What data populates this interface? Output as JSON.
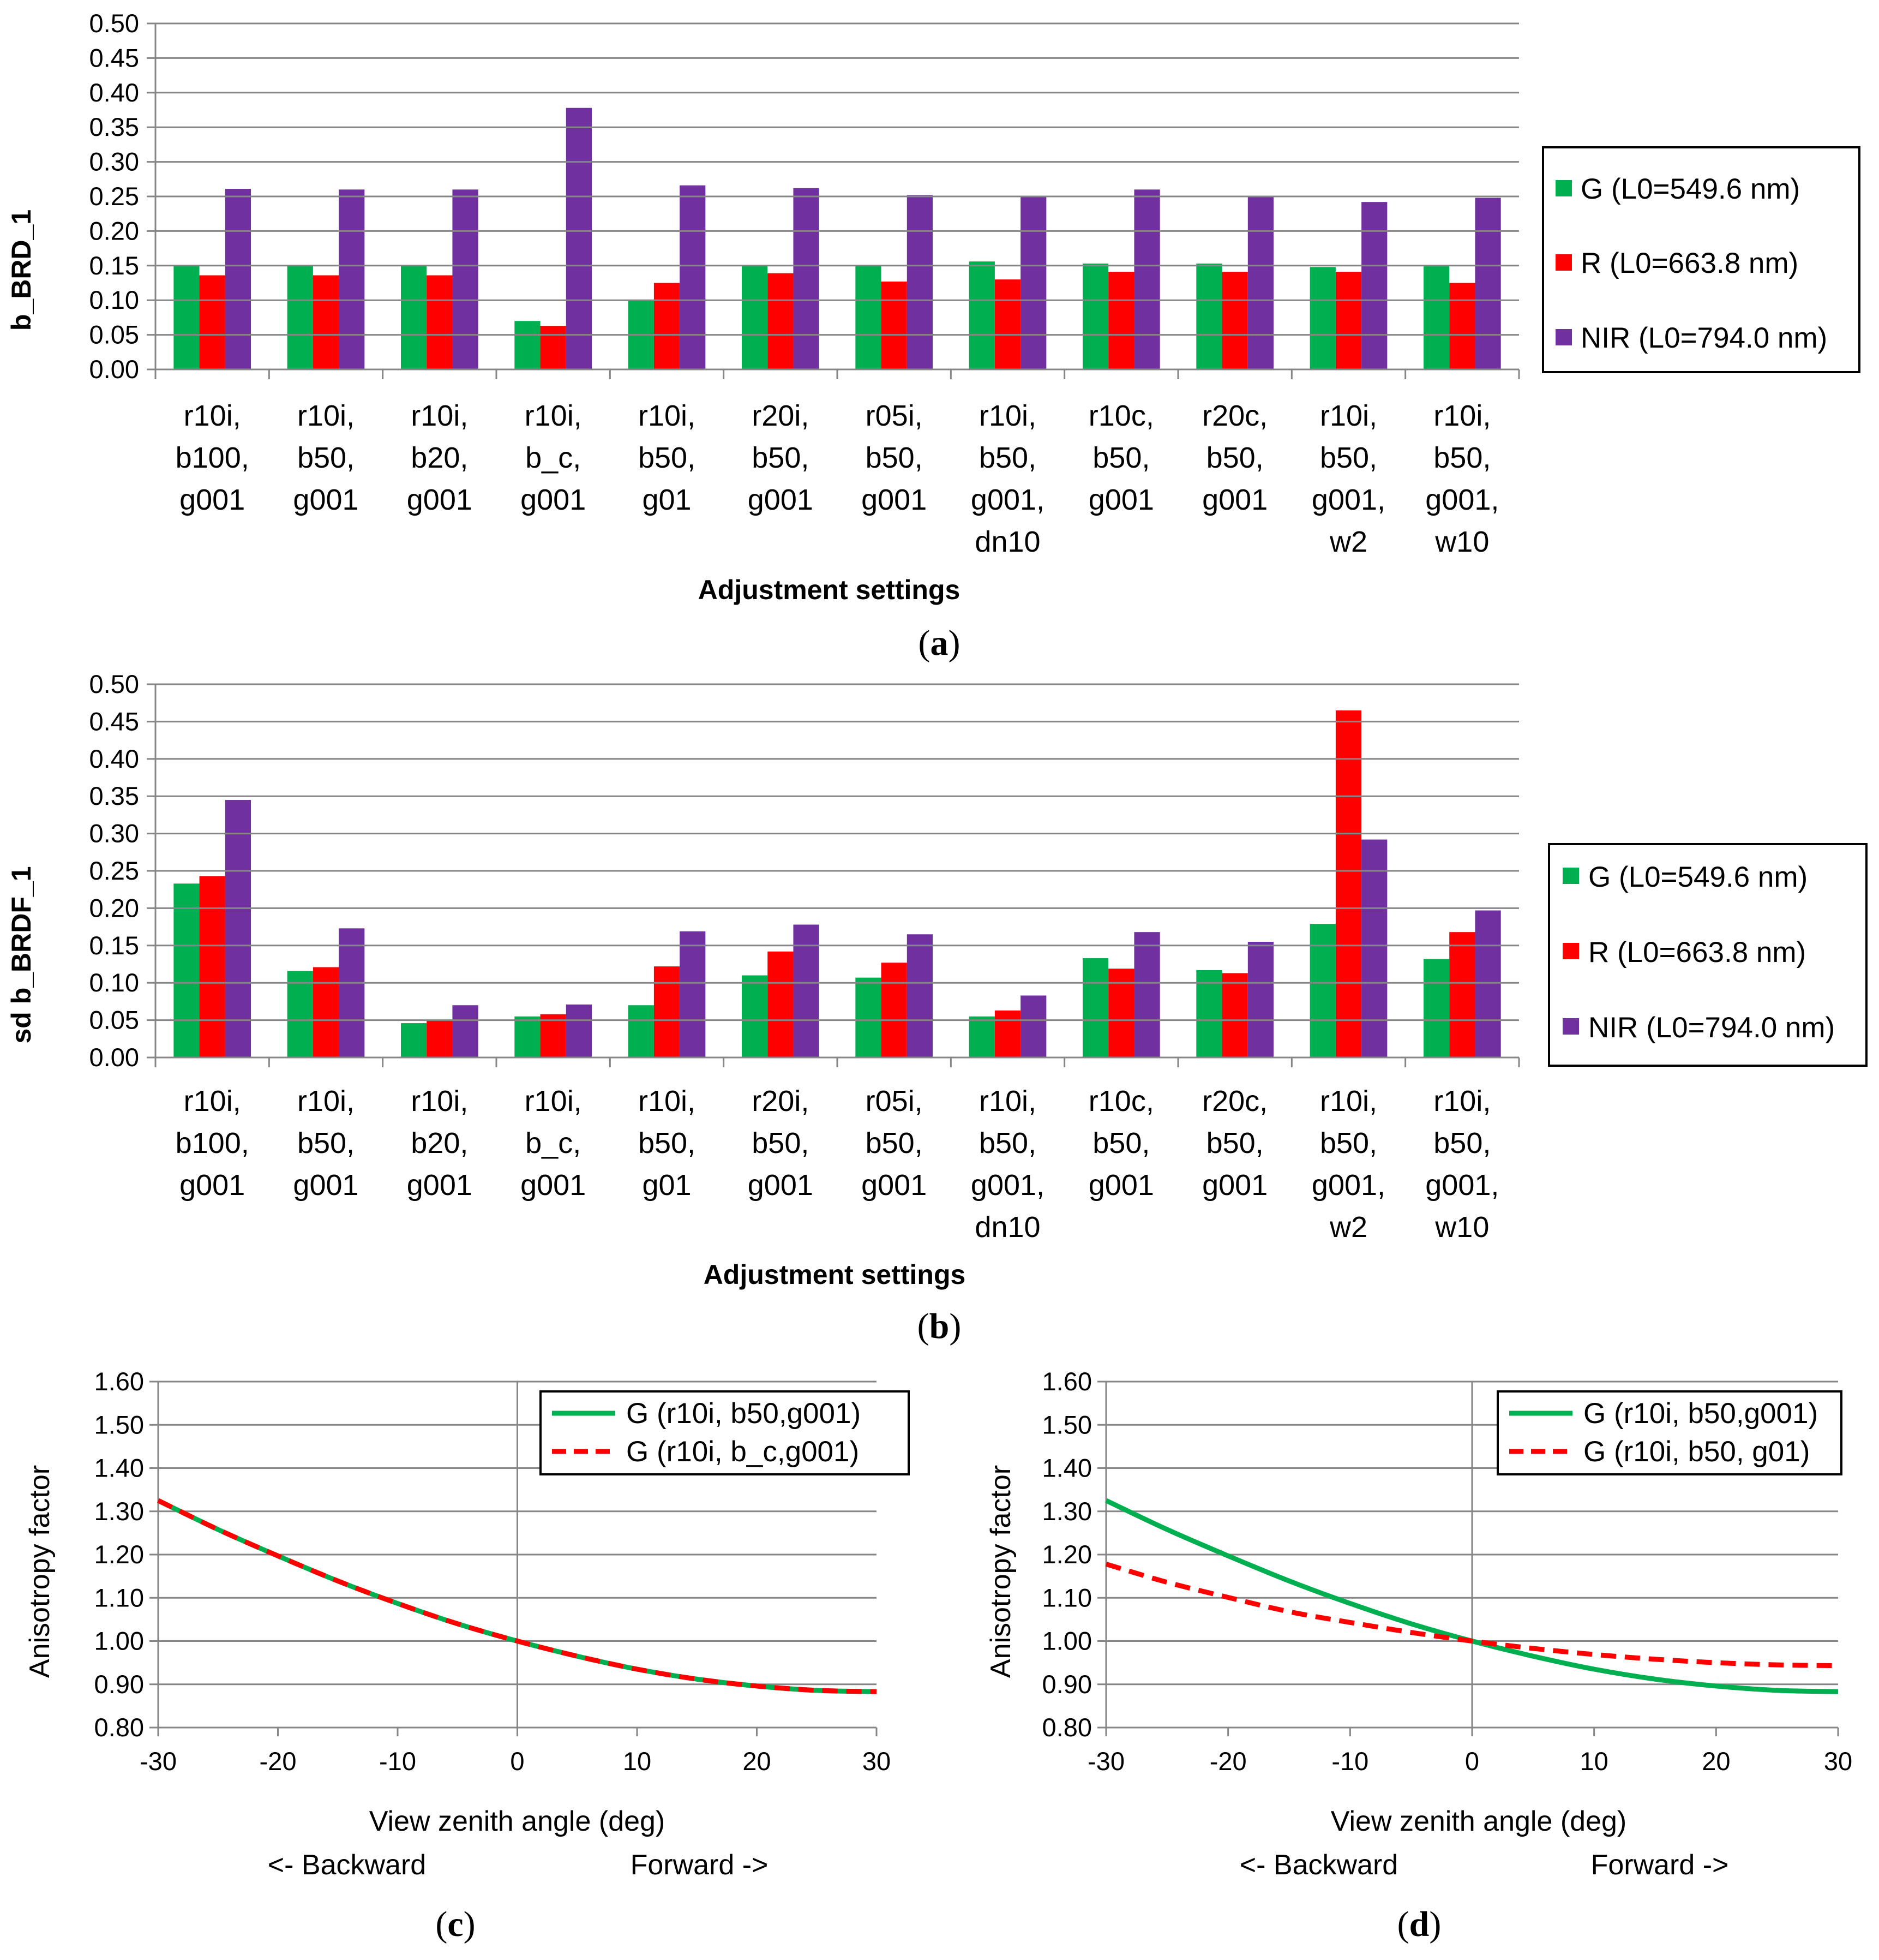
{
  "colors": {
    "G": "#00b050",
    "R": "#ff0000",
    "NIR": "#7030a0",
    "grid": "#868686",
    "axis": "#868686"
  },
  "chart_data": [
    {
      "type": "bar",
      "id": "a",
      "panel_label": "a",
      "ylabel": "b_BRD_1",
      "xlabel": "Adjustment settings",
      "ylim": [
        0,
        0.5
      ],
      "yticks": [
        "0.00",
        "0.05",
        "0.10",
        "0.15",
        "0.20",
        "0.25",
        "0.30",
        "0.35",
        "0.40",
        "0.45",
        "0.50"
      ],
      "categories": [
        [
          "r10i,",
          "b100,",
          "g001"
        ],
        [
          "r10i,",
          "b50,",
          "g001"
        ],
        [
          "r10i,",
          "b20,",
          "g001"
        ],
        [
          "r10i,",
          "b_c,",
          "g001"
        ],
        [
          "r10i,",
          "b50,",
          "g01"
        ],
        [
          "r20i,",
          "b50,",
          "g001"
        ],
        [
          "r05i,",
          "b50,",
          "g001"
        ],
        [
          "r10i,",
          "b50,",
          "g001,",
          "dn10"
        ],
        [
          "r10c,",
          "b50,",
          "g001"
        ],
        [
          "r20c,",
          "b50,",
          "g001"
        ],
        [
          "r10i,",
          "b50,",
          "g001,",
          "w2"
        ],
        [
          "r10i,",
          "b50,",
          "g001,",
          "w10"
        ]
      ],
      "series": [
        {
          "name": "G (L0=549.6 nm)",
          "key": "G",
          "values": [
            0.151,
            0.151,
            0.151,
            0.07,
            0.1,
            0.151,
            0.15,
            0.156,
            0.153,
            0.153,
            0.148,
            0.149
          ]
        },
        {
          "name": "R (L0=663.8 nm)",
          "key": "R",
          "values": [
            0.136,
            0.136,
            0.136,
            0.063,
            0.125,
            0.139,
            0.127,
            0.13,
            0.141,
            0.141,
            0.141,
            0.125
          ]
        },
        {
          "name": "NIR (L0=794.0 nm)",
          "key": "NIR",
          "values": [
            0.261,
            0.26,
            0.26,
            0.378,
            0.266,
            0.262,
            0.252,
            0.251,
            0.26,
            0.251,
            0.242,
            0.248
          ]
        }
      ]
    },
    {
      "type": "bar",
      "id": "b",
      "panel_label": "b",
      "ylabel": "sd b_BRDF_1",
      "xlabel": "Adjustment settings",
      "ylim": [
        0,
        0.5
      ],
      "yticks": [
        "0.00",
        "0.05",
        "0.10",
        "0.15",
        "0.20",
        "0.25",
        "0.30",
        "0.35",
        "0.40",
        "0.45",
        "0.50"
      ],
      "categories": [
        [
          "r10i,",
          "b100,",
          "g001"
        ],
        [
          "r10i,",
          "b50,",
          "g001"
        ],
        [
          "r10i,",
          "b20,",
          "g001"
        ],
        [
          "r10i,",
          "b_c,",
          "g001"
        ],
        [
          "r10i,",
          "b50,",
          "g01"
        ],
        [
          "r20i,",
          "b50,",
          "g001"
        ],
        [
          "r05i,",
          "b50,",
          "g001"
        ],
        [
          "r10i,",
          "b50,",
          "g001,",
          "dn10"
        ],
        [
          "r10c,",
          "b50,",
          "g001"
        ],
        [
          "r20c,",
          "b50,",
          "g001"
        ],
        [
          "r10i,",
          "b50,",
          "g001,",
          "w2"
        ],
        [
          "r10i,",
          "b50,",
          "g001,",
          "w10"
        ]
      ],
      "series": [
        {
          "name": "G (L0=549.6 nm)",
          "key": "G",
          "values": [
            0.233,
            0.116,
            0.046,
            0.055,
            0.07,
            0.11,
            0.107,
            0.055,
            0.133,
            0.117,
            0.179,
            0.132
          ]
        },
        {
          "name": "R (L0=663.8 nm)",
          "key": "R",
          "values": [
            0.243,
            0.121,
            0.05,
            0.058,
            0.122,
            0.142,
            0.127,
            0.063,
            0.119,
            0.113,
            0.465,
            0.168
          ]
        },
        {
          "name": "NIR (L0=794.0 nm)",
          "key": "NIR",
          "values": [
            0.345,
            0.173,
            0.07,
            0.071,
            0.169,
            0.178,
            0.165,
            0.083,
            0.168,
            0.155,
            0.292,
            0.197
          ]
        }
      ]
    },
    {
      "type": "line",
      "id": "c",
      "panel_label": "c",
      "ylabel": "Anisotropy factor",
      "xlabel": "View zenith angle (deg)",
      "sublabels": [
        "<- Backward",
        "Forward ->"
      ],
      "xlim": [
        -30,
        30
      ],
      "ylim": [
        0.8,
        1.6
      ],
      "xticks": [
        "-30",
        "-20",
        "-10",
        "0",
        "10",
        "20",
        "30"
      ],
      "yticks": [
        "0.80",
        "0.90",
        "1.00",
        "1.10",
        "1.20",
        "1.30",
        "1.40",
        "1.50",
        "1.60"
      ],
      "x": [
        -30,
        -25,
        -20,
        -15,
        -10,
        -5,
        0,
        5,
        10,
        15,
        20,
        25,
        30
      ],
      "series": [
        {
          "name": "G (r10i, b50,g001)",
          "style": "solid",
          "color": "#00b050",
          "values": [
            1.325,
            1.258,
            1.197,
            1.139,
            1.087,
            1.04,
            1.0,
            0.965,
            0.935,
            0.912,
            0.896,
            0.886,
            0.883
          ]
        },
        {
          "name": "G (r10i, b_c,g001)",
          "style": "dashed",
          "color": "#ff0000",
          "values": [
            1.325,
            1.258,
            1.197,
            1.139,
            1.087,
            1.04,
            1.0,
            0.965,
            0.935,
            0.912,
            0.896,
            0.886,
            0.883
          ]
        }
      ]
    },
    {
      "type": "line",
      "id": "d",
      "panel_label": "d",
      "ylabel": "Anisotropy factor",
      "xlabel": "View zenith angle (deg)",
      "sublabels": [
        "<- Backward",
        "Forward ->"
      ],
      "xlim": [
        -30,
        30
      ],
      "ylim": [
        0.8,
        1.6
      ],
      "xticks": [
        "-30",
        "-20",
        "-10",
        "0",
        "10",
        "20",
        "30"
      ],
      "yticks": [
        "0.80",
        "0.90",
        "1.00",
        "1.10",
        "1.20",
        "1.30",
        "1.40",
        "1.50",
        "1.60"
      ],
      "x": [
        -30,
        -25,
        -20,
        -15,
        -10,
        -5,
        0,
        5,
        10,
        15,
        20,
        25,
        30
      ],
      "series": [
        {
          "name": "G (r10i, b50,g001)",
          "style": "solid",
          "color": "#00b050",
          "values": [
            1.325,
            1.258,
            1.197,
            1.139,
            1.087,
            1.04,
            1.0,
            0.965,
            0.935,
            0.912,
            0.896,
            0.886,
            0.883
          ]
        },
        {
          "name": "G (r10i, b50, g01)",
          "style": "dashed",
          "color": "#ff0000",
          "values": [
            1.178,
            1.136,
            1.101,
            1.068,
            1.043,
            1.02,
            1.0,
            0.983,
            0.969,
            0.958,
            0.95,
            0.945,
            0.943
          ]
        }
      ]
    }
  ]
}
